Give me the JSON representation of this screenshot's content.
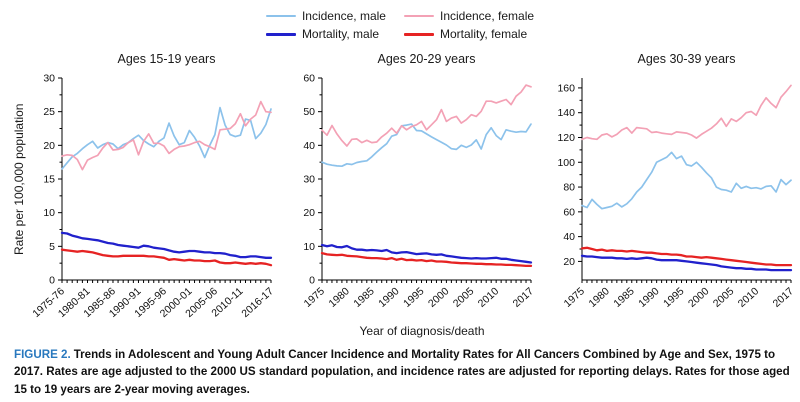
{
  "figure": {
    "legend": {
      "items": [
        {
          "label": "Incidence, male",
          "color": "#8CC2EB",
          "thickness": 2
        },
        {
          "label": "Incidence, female",
          "color": "#F3A1B5",
          "thickness": 2
        },
        {
          "label": "Mortality, male",
          "color": "#2121CC",
          "thickness": 3
        },
        {
          "label": "Mortality, female",
          "color": "#E62323",
          "thickness": 3
        }
      ]
    },
    "yaxis_title": "Rate per 100,000 population",
    "xaxis_title": "Year of diagnosis/death",
    "caption": {
      "label": "FIGURE 2.",
      "label_color": "#2878BE",
      "text": "Trends in Adolescent and Young Adult Cancer Incidence and Mortality Rates for All Cancers Combined by Age and Sex, 1975 to 2017. Rates are age adjusted to the 2000 US standard population, and incidence rates are adjusted for reporting delays. Rates for those aged 15 to 19 years are 2-year moving averages."
    }
  },
  "chart_data": [
    {
      "type": "line",
      "title": "Ages 15-19 years",
      "ylim": [
        0,
        30
      ],
      "yticks": [
        0,
        5,
        10,
        15,
        20,
        25,
        30
      ],
      "xticks": [
        {
          "pos": 0,
          "label": "1975-76"
        },
        {
          "pos": 5,
          "label": "1980-81"
        },
        {
          "pos": 10,
          "label": "1985-86"
        },
        {
          "pos": 15,
          "label": "1990-91"
        },
        {
          "pos": 20,
          "label": "1995-96"
        },
        {
          "pos": 25,
          "label": "2000-01"
        },
        {
          "pos": 30,
          "label": "2005-06"
        },
        {
          "pos": 35,
          "label": "2010-11"
        },
        {
          "pos": 41,
          "label": "2016-17"
        }
      ],
      "series": [
        {
          "key": "incidence-male",
          "name": "Incidence, male",
          "color": "#8CC2EB",
          "width": 1.7,
          "values": [
            16.5,
            17.4,
            18.3,
            18.8,
            19.5,
            20.1,
            20.6,
            19.6,
            20.1,
            20.4,
            20.2,
            19.5,
            20.1,
            20.4,
            21.0,
            21.5,
            20.7,
            20.2,
            19.8,
            20.6,
            21.1,
            23.3,
            21.4,
            20.1,
            20.4,
            22.2,
            21.2,
            19.9,
            18.2,
            20.0,
            21.6,
            25.6,
            23.0,
            21.6,
            21.3,
            21.5,
            23.9,
            23.7,
            21.0,
            21.8,
            23.1,
            25.4
          ]
        },
        {
          "key": "incidence-female",
          "name": "Incidence, female",
          "color": "#F3A1B5",
          "width": 1.7,
          "values": [
            18.4,
            18.6,
            18.5,
            17.9,
            16.4,
            17.8,
            18.2,
            18.5,
            19.6,
            20.4,
            19.3,
            19.4,
            19.7,
            20.4,
            20.8,
            18.6,
            20.6,
            21.7,
            20.3,
            20.3,
            19.9,
            18.8,
            19.4,
            19.8,
            19.9,
            20.1,
            20.4,
            20.6,
            20.1,
            19.8,
            19.4,
            22.3,
            22.4,
            22.5,
            23.2,
            24.7,
            22.9,
            23.9,
            24.5,
            26.5,
            25.0,
            24.9
          ]
        },
        {
          "key": "mortality-male",
          "name": "Mortality, male",
          "color": "#2121CC",
          "width": 2.3,
          "values": [
            7.0,
            6.9,
            6.6,
            6.4,
            6.2,
            6.1,
            6.0,
            5.9,
            5.7,
            5.5,
            5.4,
            5.2,
            5.1,
            5.0,
            4.9,
            4.8,
            5.1,
            5.0,
            4.8,
            4.7,
            4.6,
            4.4,
            4.2,
            4.1,
            4.2,
            4.3,
            4.3,
            4.2,
            4.1,
            4.1,
            4.0,
            4.0,
            3.9,
            3.7,
            3.6,
            3.4,
            3.4,
            3.5,
            3.5,
            3.4,
            3.3,
            3.3
          ]
        },
        {
          "key": "mortality-female",
          "name": "Mortality, female",
          "color": "#E62323",
          "width": 2.3,
          "values": [
            4.5,
            4.4,
            4.3,
            4.2,
            4.3,
            4.2,
            4.1,
            3.9,
            3.7,
            3.6,
            3.5,
            3.5,
            3.6,
            3.6,
            3.6,
            3.6,
            3.6,
            3.5,
            3.5,
            3.4,
            3.3,
            3.0,
            3.1,
            3.0,
            2.9,
            3.0,
            2.9,
            2.9,
            2.8,
            2.8,
            2.9,
            2.6,
            2.5,
            2.5,
            2.6,
            2.5,
            2.4,
            2.5,
            2.4,
            2.5,
            2.4,
            2.2
          ]
        }
      ]
    },
    {
      "type": "line",
      "title": "Ages 20-29 years",
      "ylim": [
        0,
        60
      ],
      "yticks": [
        0,
        10,
        20,
        30,
        40,
        50,
        60
      ],
      "xticks": [
        {
          "pos": 0,
          "label": "1975"
        },
        {
          "pos": 5,
          "label": "1980"
        },
        {
          "pos": 10,
          "label": "1985"
        },
        {
          "pos": 15,
          "label": "1990"
        },
        {
          "pos": 20,
          "label": "1995"
        },
        {
          "pos": 25,
          "label": "2000"
        },
        {
          "pos": 30,
          "label": "2005"
        },
        {
          "pos": 35,
          "label": "2010"
        },
        {
          "pos": 42,
          "label": "2017"
        }
      ],
      "series": [
        {
          "key": "incidence-male",
          "name": "Incidence, male",
          "color": "#8CC2EB",
          "width": 1.7,
          "values": [
            35.0,
            34.4,
            34.1,
            33.9,
            33.8,
            34.5,
            34.3,
            34.9,
            35.2,
            35.4,
            36.6,
            38.0,
            39.3,
            40.5,
            42.7,
            43.2,
            45.8,
            46.0,
            46.3,
            44.4,
            44.3,
            43.4,
            42.5,
            41.7,
            40.9,
            40.1,
            39.0,
            38.8,
            40.0,
            39.4,
            40.1,
            41.6,
            38.9,
            43.2,
            45.2,
            42.9,
            41.7,
            44.6,
            44.2,
            43.9,
            44.1,
            44.0,
            46.3
          ]
        },
        {
          "key": "incidence-female",
          "name": "Incidence, female",
          "color": "#F3A1B5",
          "width": 1.7,
          "values": [
            44.5,
            43.0,
            45.9,
            43.4,
            41.4,
            39.8,
            41.8,
            41.9,
            40.8,
            41.5,
            40.8,
            41.0,
            42.5,
            43.6,
            45.1,
            43.6,
            45.8,
            44.6,
            45.6,
            46.1,
            47.1,
            44.6,
            46.1,
            47.6,
            50.6,
            47.1,
            48.1,
            48.6,
            46.6,
            47.6,
            49.1,
            48.6,
            50.1,
            53.1,
            53.1,
            52.6,
            53.1,
            53.6,
            52.1,
            54.6,
            55.8,
            57.9,
            57.4
          ]
        },
        {
          "key": "mortality-male",
          "name": "Mortality, male",
          "color": "#2121CC",
          "width": 2.3,
          "values": [
            10.4,
            10.0,
            10.3,
            9.8,
            9.7,
            10.1,
            9.4,
            9.0,
            9.0,
            8.8,
            8.9,
            8.8,
            8.6,
            8.9,
            8.2,
            8.0,
            8.2,
            8.3,
            8.0,
            7.7,
            7.8,
            7.9,
            7.6,
            7.5,
            7.6,
            7.2,
            7.0,
            6.8,
            6.6,
            6.5,
            6.4,
            6.5,
            6.4,
            6.4,
            6.5,
            6.6,
            6.3,
            6.3,
            6.0,
            5.8,
            5.6,
            5.4,
            5.2
          ]
        },
        {
          "key": "mortality-female",
          "name": "Mortality, female",
          "color": "#E62323",
          "width": 2.3,
          "values": [
            8.0,
            7.6,
            7.5,
            7.4,
            7.5,
            7.2,
            7.1,
            7.0,
            6.8,
            6.6,
            6.5,
            6.5,
            6.4,
            6.2,
            6.5,
            6.0,
            6.3,
            5.9,
            6.0,
            5.8,
            5.9,
            5.6,
            5.8,
            5.5,
            5.5,
            5.4,
            5.2,
            5.1,
            5.0,
            5.0,
            4.9,
            4.8,
            4.8,
            4.7,
            4.7,
            4.6,
            4.6,
            4.5,
            4.5,
            4.4,
            4.3,
            4.2,
            4.2
          ]
        }
      ]
    },
    {
      "type": "line",
      "title": "Ages 30-39 years",
      "ylim": [
        5,
        168
      ],
      "yticks": [
        20,
        40,
        60,
        80,
        100,
        120,
        140,
        160
      ],
      "xticks": [
        {
          "pos": 0,
          "label": "1975"
        },
        {
          "pos": 5,
          "label": "1980"
        },
        {
          "pos": 10,
          "label": "1985"
        },
        {
          "pos": 15,
          "label": "1990"
        },
        {
          "pos": 20,
          "label": "1995"
        },
        {
          "pos": 25,
          "label": "2000"
        },
        {
          "pos": 30,
          "label": "2005"
        },
        {
          "pos": 35,
          "label": "2010"
        },
        {
          "pos": 42,
          "label": "2017"
        }
      ],
      "series": [
        {
          "key": "incidence-male",
          "name": "Incidence, male",
          "color": "#8CC2EB",
          "width": 1.7,
          "values": [
            65.0,
            63.5,
            70.0,
            66.0,
            62.5,
            63.5,
            64.5,
            67.0,
            64.0,
            66.5,
            70.5,
            76.0,
            80.0,
            86.0,
            92.0,
            100.0,
            102.0,
            104.0,
            108.0,
            103.0,
            105.0,
            98.0,
            97.0,
            100.0,
            96.0,
            91.5,
            87.5,
            80.0,
            78.0,
            77.5,
            76.0,
            83.0,
            79.0,
            80.5,
            79.0,
            79.5,
            78.5,
            80.5,
            81.0,
            76.0,
            86.0,
            82.0,
            85.5
          ]
        },
        {
          "key": "incidence-female",
          "name": "Incidence, female",
          "color": "#F3A1B5",
          "width": 1.7,
          "values": [
            118.5,
            120.0,
            119.0,
            118.5,
            122.0,
            123.0,
            120.5,
            122.5,
            126.0,
            128.0,
            123.5,
            128.0,
            127.5,
            127.0,
            124.0,
            124.5,
            123.5,
            123.0,
            122.5,
            124.5,
            124.0,
            123.5,
            122.0,
            119.5,
            122.5,
            125.0,
            127.5,
            131.0,
            135.5,
            129.0,
            135.0,
            133.0,
            136.0,
            140.0,
            141.0,
            138.0,
            146.0,
            152.0,
            147.5,
            144.0,
            152.5,
            157.0,
            162.0
          ]
        },
        {
          "key": "mortality-male",
          "name": "Mortality, male",
          "color": "#2121CC",
          "width": 2.3,
          "values": [
            24.5,
            24.0,
            24.0,
            23.5,
            23.0,
            23.0,
            23.0,
            22.5,
            22.5,
            22.0,
            22.5,
            22.0,
            22.5,
            23.0,
            22.5,
            21.5,
            21.0,
            21.0,
            21.0,
            21.0,
            20.5,
            20.0,
            19.5,
            19.0,
            18.5,
            18.0,
            17.5,
            17.0,
            16.0,
            15.5,
            15.0,
            14.5,
            14.5,
            14.0,
            14.0,
            13.5,
            13.5,
            13.5,
            13.0,
            13.0,
            13.0,
            13.0,
            13.0
          ]
        },
        {
          "key": "mortality-female",
          "name": "Mortality, female",
          "color": "#E62323",
          "width": 2.3,
          "values": [
            30.5,
            31.0,
            30.0,
            29.0,
            29.5,
            28.5,
            29.0,
            28.5,
            28.5,
            28.0,
            28.5,
            28.0,
            27.5,
            27.0,
            27.0,
            26.5,
            26.0,
            26.0,
            25.5,
            25.5,
            25.0,
            24.0,
            24.0,
            23.5,
            23.0,
            23.5,
            23.0,
            22.5,
            22.0,
            21.5,
            21.0,
            20.5,
            20.0,
            19.5,
            19.0,
            18.5,
            18.0,
            17.5,
            17.5,
            17.0,
            17.0,
            17.0,
            17.0
          ]
        }
      ]
    }
  ]
}
